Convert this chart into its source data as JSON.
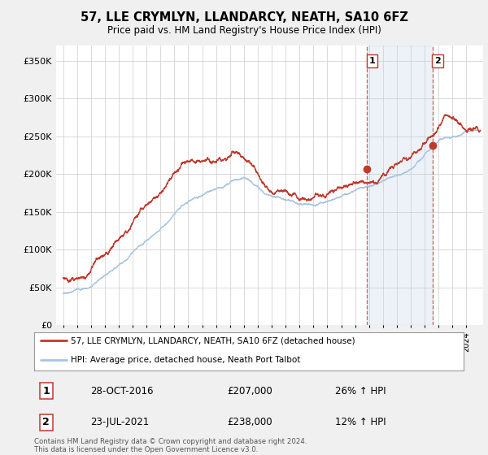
{
  "title": "57, LLE CRYMLYN, LLANDARCY, NEATH, SA10 6FZ",
  "subtitle": "Price paid vs. HM Land Registry's House Price Index (HPI)",
  "legend_line1": "57, LLE CRYMLYN, LLANDARCY, NEATH, SA10 6FZ (detached house)",
  "legend_line2": "HPI: Average price, detached house, Neath Port Talbot",
  "annotation1_label": "1",
  "annotation1_date": "28-OCT-2016",
  "annotation1_price": "£207,000",
  "annotation1_hpi": "26% ↑ HPI",
  "annotation1_year": 2016.83,
  "annotation1_value": 207000,
  "annotation2_label": "2",
  "annotation2_date": "23-JUL-2021",
  "annotation2_price": "£238,000",
  "annotation2_hpi": "12% ↑ HPI",
  "annotation2_year": 2021.55,
  "annotation2_value": 238000,
  "hpi_color": "#a8c4e0",
  "price_color": "#c0392b",
  "background_color": "#f0f0f0",
  "plot_bg_color": "#ffffff",
  "ylim": [
    0,
    370000
  ],
  "xlim_start": 1994.5,
  "xlim_end": 2025.2,
  "footer": "Contains HM Land Registry data © Crown copyright and database right 2024.\nThis data is licensed under the Open Government Licence v3.0."
}
